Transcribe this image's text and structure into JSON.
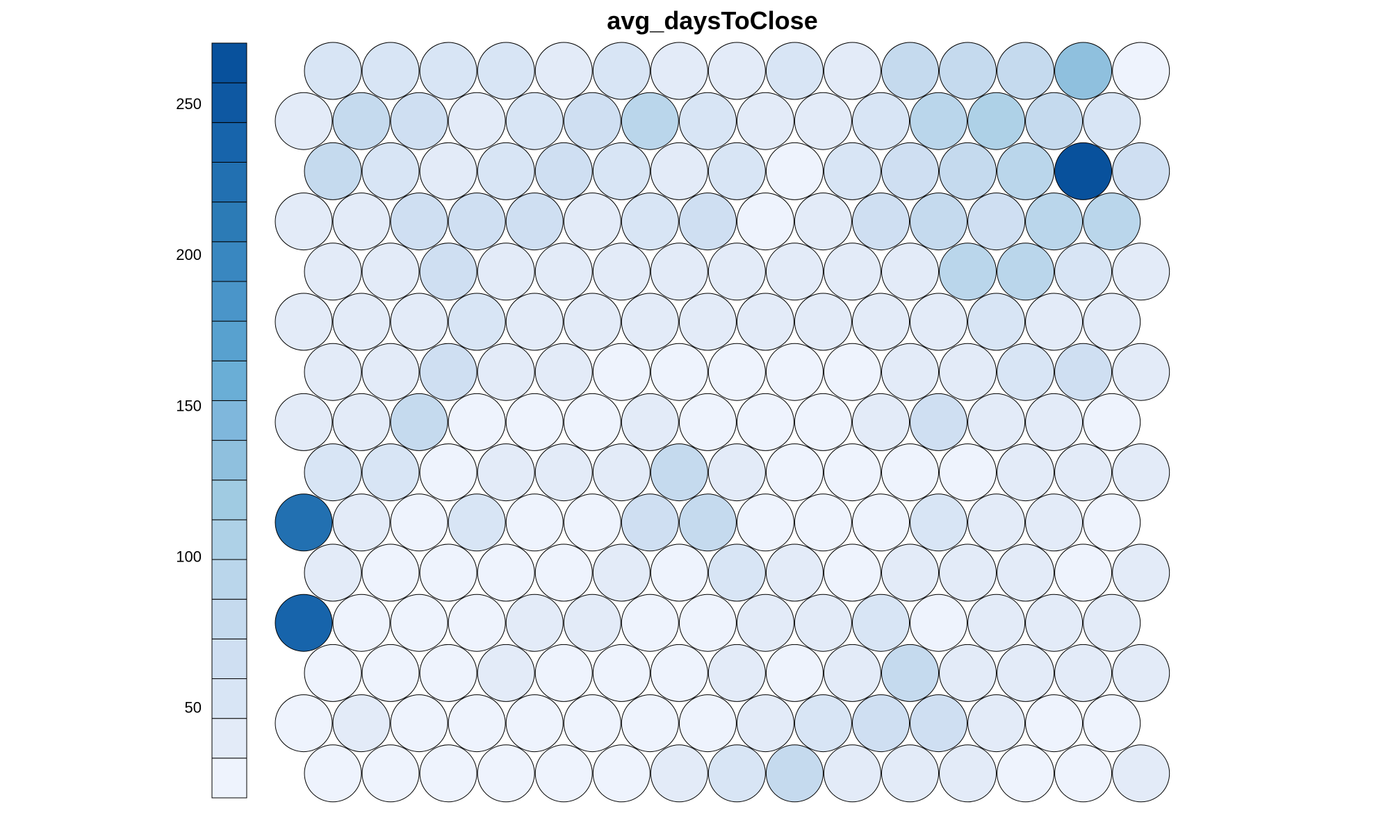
{
  "chart_data": {
    "type": "heatmap",
    "title": "avg_daysToClose",
    "grid_shape": "hexagonal",
    "rows": 15,
    "cols": 15,
    "row_order": "top-to-bottom",
    "colorscale": {
      "name": "Blues",
      "low_color": "#eef3fd",
      "high_color": "#08519c",
      "colors": [
        "#eef3fd",
        "#e3ebf8",
        "#d8e5f5",
        "#cfdff2",
        "#c5daee",
        "#bad6eb",
        "#aed1e7",
        "#a0cbe2",
        "#8fc0de",
        "#7fb7dc",
        "#6aaed6",
        "#58a1cf",
        "#4a95c9",
        "#3987c0",
        "#2c7bb6",
        "#2270b1",
        "#1764ab",
        "#0e58a2",
        "#08519c"
      ],
      "range": [
        20,
        270
      ],
      "ticks": [
        50,
        100,
        150,
        200,
        250
      ]
    },
    "values": [
      [
        57,
        58,
        53,
        53,
        45,
        55,
        45,
        45,
        53,
        45,
        73,
        74,
        78,
        135,
        30
      ],
      [
        45,
        74,
        67,
        45,
        53,
        60,
        87,
        56,
        37,
        37,
        53,
        86,
        100,
        74,
        49
      ],
      [
        74,
        56,
        45,
        56,
        65,
        55,
        40,
        53,
        25,
        53,
        60,
        77,
        89,
        265,
        60
      ],
      [
        45,
        40,
        60,
        60,
        67,
        45,
        55,
        60,
        25,
        37,
        60,
        78,
        70,
        97,
        89
      ],
      [
        37,
        37,
        60,
        37,
        37,
        37,
        37,
        37,
        45,
        37,
        37,
        89,
        95,
        53,
        37
      ],
      [
        37,
        37,
        37,
        53,
        37,
        37,
        37,
        37,
        37,
        37,
        37,
        37,
        53,
        37,
        37
      ],
      [
        37,
        37,
        60,
        45,
        37,
        30,
        30,
        30,
        30,
        30,
        37,
        37,
        56,
        65,
        37
      ],
      [
        37,
        37,
        78,
        30,
        30,
        30,
        37,
        30,
        30,
        30,
        37,
        60,
        45,
        37,
        30
      ],
      [
        53,
        56,
        30,
        37,
        37,
        37,
        75,
        37,
        30,
        30,
        30,
        30,
        37,
        37,
        37
      ],
      [
        225,
        37,
        30,
        53,
        30,
        30,
        65,
        84,
        30,
        30,
        30,
        53,
        37,
        37,
        30
      ],
      [
        37,
        30,
        30,
        30,
        30,
        37,
        30,
        53,
        37,
        30,
        37,
        37,
        37,
        30,
        37
      ],
      [
        235,
        30,
        30,
        30,
        37,
        37,
        30,
        30,
        37,
        37,
        53,
        30,
        37,
        37,
        37
      ],
      [
        30,
        30,
        30,
        37,
        30,
        30,
        30,
        37,
        30,
        37,
        75,
        37,
        37,
        37,
        37
      ],
      [
        30,
        37,
        30,
        30,
        30,
        30,
        30,
        30,
        37,
        53,
        60,
        60,
        37,
        30,
        30
      ],
      [
        30,
        30,
        30,
        30,
        30,
        30,
        37,
        53,
        75,
        37,
        37,
        37,
        30,
        30,
        37
      ]
    ]
  }
}
